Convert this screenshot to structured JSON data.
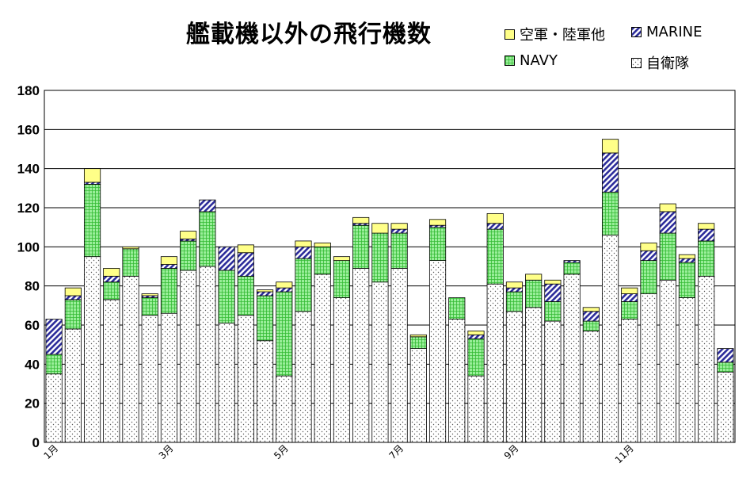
{
  "chart_data": {
    "type": "bar",
    "stacked": true,
    "title": "艦載機以外の飛行機数",
    "ylim": [
      0,
      180
    ],
    "yticks": [
      0,
      20,
      40,
      60,
      80,
      100,
      120,
      140,
      160,
      180
    ],
    "grid": true,
    "legend_position": "top-right",
    "x_tick_labels": [
      {
        "index": 0,
        "label": "1月"
      },
      {
        "index": 6,
        "label": "3月"
      },
      {
        "index": 12,
        "label": "5月"
      },
      {
        "index": 18,
        "label": "7月"
      },
      {
        "index": 24,
        "label": "9月"
      },
      {
        "index": 30,
        "label": "11月"
      }
    ],
    "series": [
      {
        "name": "自衛隊",
        "key": "jsdf",
        "color": "#ffffff",
        "values": [
          35,
          58,
          95,
          73,
          85,
          65,
          66,
          88,
          90,
          61,
          65,
          52,
          34,
          67,
          86,
          74,
          89,
          82,
          89,
          48,
          93,
          63,
          34,
          81,
          67,
          69,
          62,
          86,
          57,
          106,
          63,
          76,
          83,
          74,
          85,
          36
        ]
      },
      {
        "name": "NAVY",
        "key": "navy",
        "color": "#99ee99",
        "values": [
          10,
          15,
          37,
          9,
          14,
          9,
          23,
          15,
          28,
          27,
          20,
          23,
          43,
          27,
          14,
          19,
          22,
          25,
          18,
          6,
          17,
          11,
          19,
          28,
          10,
          14,
          10,
          6,
          5,
          22,
          9,
          17,
          24,
          18,
          18,
          5
        ]
      },
      {
        "name": "MARINE",
        "key": "marine",
        "color": "#3333aa",
        "values": [
          18,
          2,
          1,
          3,
          0,
          1,
          2,
          1,
          6,
          12,
          12,
          2,
          2,
          6,
          0,
          0,
          1,
          0,
          2,
          0,
          1,
          0,
          2,
          3,
          2,
          0,
          9,
          1,
          5,
          20,
          4,
          5,
          11,
          2,
          6,
          7
        ]
      },
      {
        "name": "空軍・陸軍他",
        "key": "af",
        "color": "#ffff88",
        "values": [
          0,
          4,
          7,
          4,
          1,
          1,
          4,
          4,
          0,
          0,
          4,
          1,
          3,
          3,
          2,
          2,
          3,
          5,
          3,
          1,
          3,
          0,
          2,
          5,
          3,
          3,
          2,
          0,
          2,
          7,
          3,
          4,
          4,
          2,
          3,
          0
        ]
      }
    ],
    "legend_order": [
      "af",
      "marine",
      "navy",
      "jsdf"
    ]
  }
}
